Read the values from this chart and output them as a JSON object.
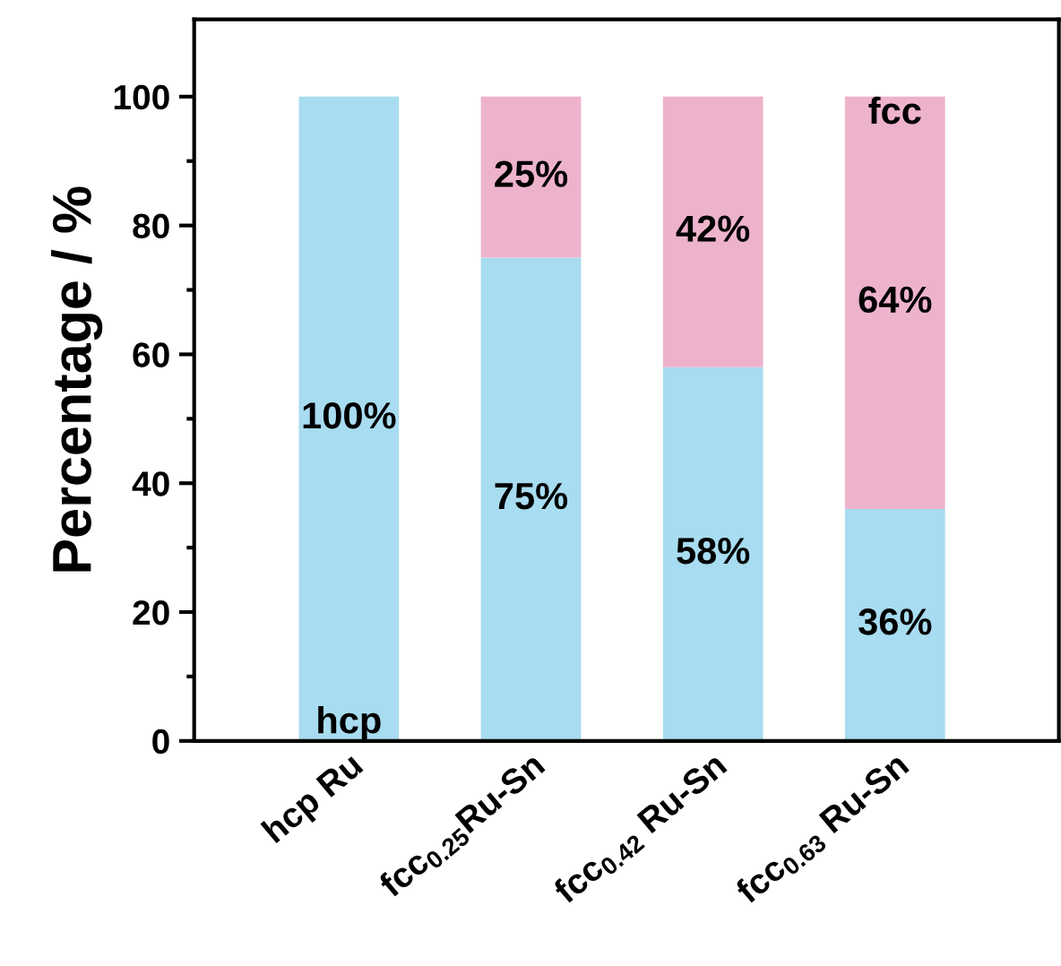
{
  "chart_data": {
    "type": "bar",
    "stacked": true,
    "ylabel": "Percentage / %",
    "categories": [
      "hcp Ru",
      "fcc$_{0.25}$Ru-Sn",
      "fcc$_{0.42}$ Ru-Sn",
      "fcc$_{0.63}$ Ru-Sn"
    ],
    "series": [
      {
        "name": "hcp",
        "color": "#a8dcf0",
        "values": [
          100,
          75,
          58,
          36
        ],
        "value_labels": [
          "100%",
          "75%",
          "58%",
          "36%"
        ]
      },
      {
        "name": "fcc",
        "color": "#eeb3cc",
        "values": [
          0,
          25,
          42,
          64
        ],
        "value_labels": [
          null,
          "25%",
          "42%",
          "64%"
        ]
      }
    ],
    "ylim": [
      0,
      112
    ],
    "yticks": [
      0,
      20,
      40,
      60,
      80,
      100
    ],
    "grid": false,
    "legend": false
  }
}
